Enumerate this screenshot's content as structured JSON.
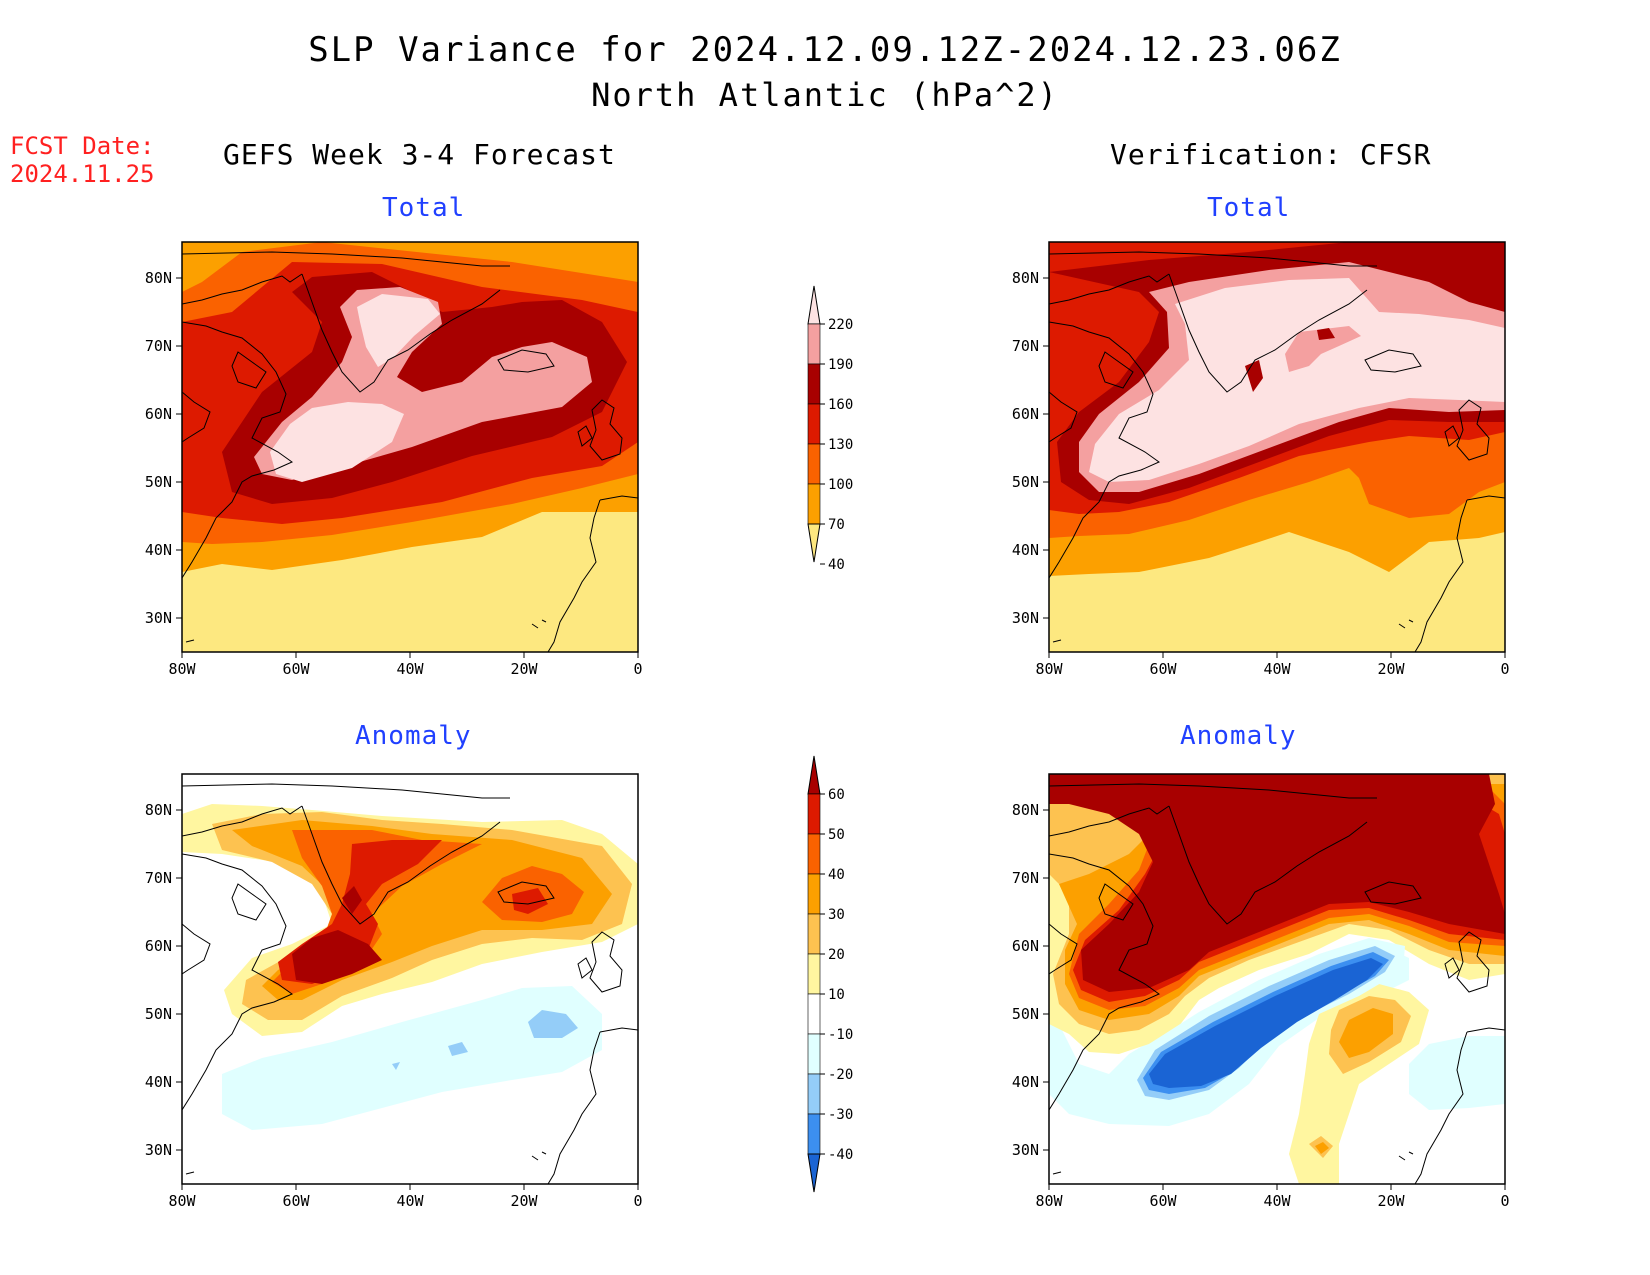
{
  "title": {
    "line1": "SLP Variance for 2024.12.09.12Z-2024.12.23.06Z",
    "line2": "North Atlantic (hPa^2)"
  },
  "fcst": {
    "label": "FCST Date:",
    "date": "2024.11.25"
  },
  "columns": {
    "left": "GEFS Week 3-4 Forecast",
    "right": "Verification: CFSR"
  },
  "panels": {
    "tl": "Total",
    "tr": "Total",
    "bl": "Anomaly",
    "br": "Anomaly"
  },
  "axes": {
    "lon_labels": [
      "80W",
      "60W",
      "40W",
      "20W",
      "0"
    ],
    "lat_labels": [
      "80N",
      "70N",
      "60N",
      "50N",
      "40N",
      "30N"
    ]
  },
  "colorbars": {
    "total": {
      "labels": [
        "220",
        "190",
        "160",
        "130",
        "100",
        "70",
        "40"
      ],
      "colors": [
        "#fde2e2",
        "#f4a0a0",
        "#a80000",
        "#dd1a00",
        "#fa6200",
        "#fca000",
        "#fde880"
      ]
    },
    "anomaly": {
      "labels": [
        "60",
        "50",
        "40",
        "30",
        "20",
        "10",
        "-10",
        "-20",
        "-30",
        "-40"
      ],
      "colors": [
        "#a80000",
        "#dd1a00",
        "#fa6200",
        "#fca000",
        "#fdc250",
        "#fff6a0",
        "#ffffff",
        "#e0ffff",
        "#94cdf8",
        "#3c8ff0",
        "#1a64d4"
      ]
    }
  },
  "colors": {
    "c40": "#fde880",
    "c70": "#fca000",
    "c100": "#fa6200",
    "c130": "#dd1a00",
    "c160": "#a80000",
    "c190": "#f4a0a0",
    "c220": "#fde2e2",
    "a10": "#fff6a0",
    "a20": "#fdc250",
    "a30": "#fca000",
    "a40": "#fa6200",
    "a50": "#dd1a00",
    "a60": "#a80000",
    "n10": "#e0ffff",
    "n20": "#94cdf8",
    "n30": "#3c8ff0",
    "n40": "#1a64d4"
  }
}
